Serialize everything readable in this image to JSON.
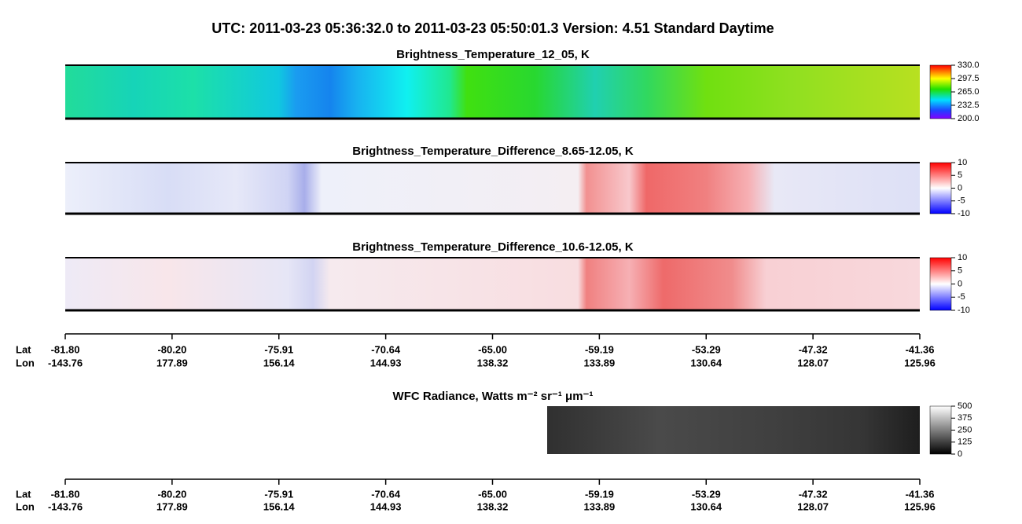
{
  "header": {
    "title": "UTC:  2011-03-23   05:36:32.0  to  2011-03-23   05:50:01.3    Version: 4.51  Standard Daytime"
  },
  "panels": [
    {
      "title": "Brightness_Temperature_12_05, K",
      "colorbar": {
        "range": [
          200,
          330
        ],
        "ticks": [
          {
            "value": 330,
            "label": "330.0"
          },
          {
            "value": 297.5,
            "label": "297.5"
          },
          {
            "value": 265,
            "label": "265.0"
          },
          {
            "value": 232.5,
            "label": "232.5"
          },
          {
            "value": 200,
            "label": "200.0"
          }
        ]
      }
    },
    {
      "title": "Brightness_Temperature_Difference_8.65-12.05, K",
      "colorbar": {
        "range": [
          -10,
          10
        ],
        "ticks": [
          10,
          5,
          0,
          -5,
          -10
        ]
      }
    },
    {
      "title": "Brightness_Temperature_Difference_10.6-12.05, K",
      "colorbar": {
        "range": [
          -10,
          10
        ],
        "ticks": [
          10,
          5,
          0,
          -5,
          -10
        ]
      }
    },
    {
      "title": "WFC Radiance, Watts m⁻² sr⁻¹ μm⁻¹",
      "colorbar": {
        "range": [
          0,
          500
        ],
        "ticks": [
          500,
          375,
          250,
          125,
          0
        ]
      }
    }
  ],
  "axes": [
    {
      "lat_label": "Lat",
      "lon_label": "Lon",
      "lat": [
        "-81.80",
        "-80.20",
        "-75.91",
        "-70.64",
        "-65.00",
        "-59.19",
        "-53.29",
        "-47.32",
        "-41.36"
      ],
      "lon": [
        "-143.76",
        "177.89",
        "156.14",
        "144.93",
        "138.32",
        "133.89",
        "130.64",
        "128.07",
        "125.96"
      ]
    },
    {
      "lat_label": "Lat",
      "lon_label": "Lon",
      "lat": [
        "-81.80",
        "-80.20",
        "-75.91",
        "-70.64",
        "-65.00",
        "-59.19",
        "-53.29",
        "-47.32",
        "-41.36"
      ],
      "lon": [
        "-143.76",
        "177.89",
        "156.14",
        "144.93",
        "138.32",
        "133.89",
        "130.64",
        "128.07",
        "125.96"
      ]
    }
  ]
}
